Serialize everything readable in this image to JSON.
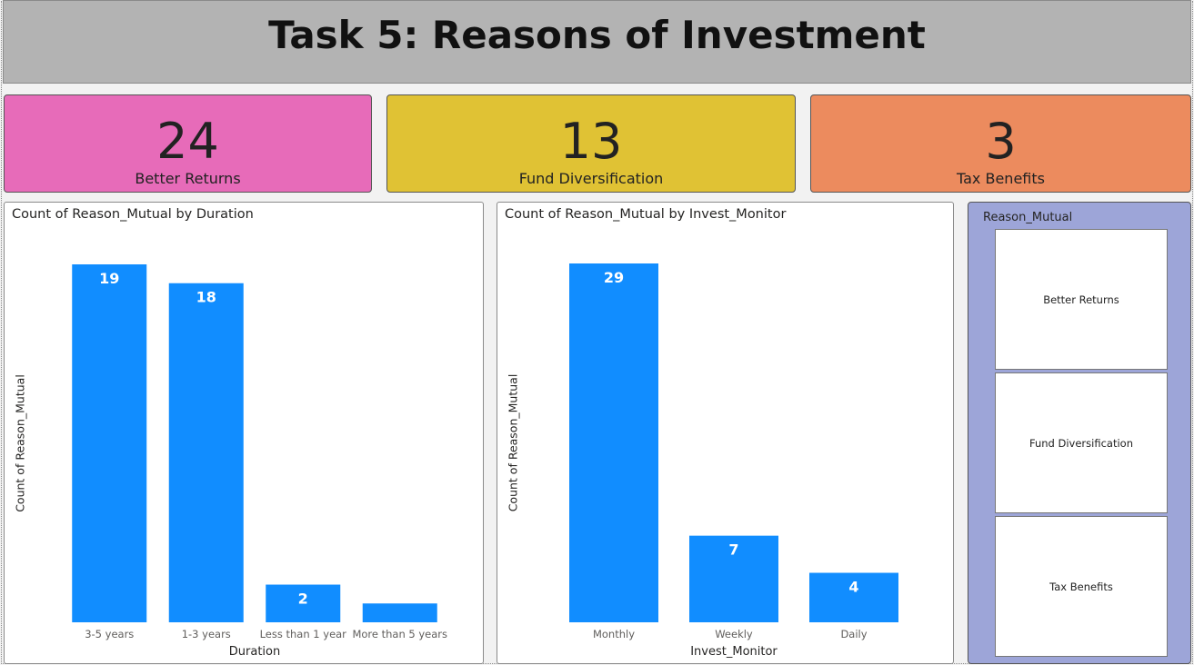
{
  "title": "Task 5: Reasons of Investment",
  "kpis": [
    {
      "value": "24",
      "label": "Better Returns",
      "color": "#e76bb9"
    },
    {
      "value": "13",
      "label": "Fund Diversification",
      "color": "#e0c234"
    },
    {
      "value": "3",
      "label": "Tax Benefits",
      "color": "#ec8b5e"
    }
  ],
  "bar_color": "#118dff",
  "chart_data": [
    {
      "type": "bar",
      "title": "Count of Reason_Mutual by Duration",
      "xlabel": "Duration",
      "ylabel": "Count of Reason_Mutual",
      "categories": [
        "3-5 years",
        "1-3 years",
        "Less than 1 year",
        "More than 5 years"
      ],
      "values": [
        19,
        18,
        2,
        1
      ],
      "data_labels": [
        "19",
        "18",
        "2",
        ""
      ],
      "ylim": [
        0,
        19
      ],
      "grid": false
    },
    {
      "type": "bar",
      "title": "Count of Reason_Mutual by Invest_Monitor",
      "xlabel": "Invest_Monitor",
      "ylabel": "Count of Reason_Mutual",
      "categories": [
        "Monthly",
        "Weekly",
        "Daily"
      ],
      "values": [
        29,
        7,
        4
      ],
      "data_labels": [
        "29",
        "7",
        "4"
      ],
      "ylim": [
        0,
        29
      ],
      "grid": false
    }
  ],
  "slicer": {
    "title": "Reason_Mutual",
    "items": [
      "Better Returns",
      "Fund Diversification",
      "Tax Benefits"
    ]
  }
}
